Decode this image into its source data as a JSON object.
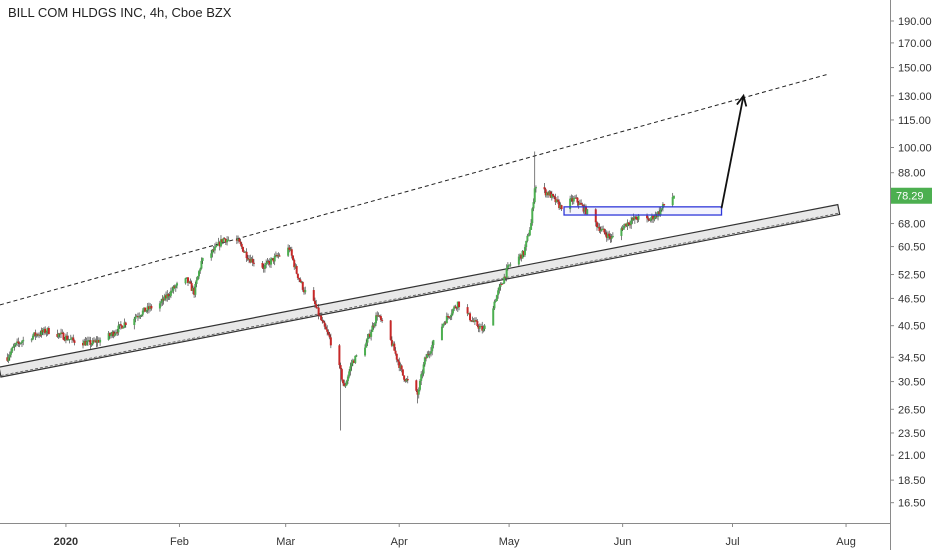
{
  "chart_data": {
    "type": "candlestick",
    "title": "BILL COM HLDGS INC, 4h, Cboe BZX",
    "y_scale": "log",
    "ylim": [
      15.5,
      205
    ],
    "xlim": [
      "2019-12-14",
      "2020-08-13"
    ],
    "y_ticks": [
      "190.00",
      "170.00",
      "150.00",
      "130.00",
      "115.00",
      "100.00",
      "88.00",
      "78.00",
      "68.00",
      "60.50",
      "52.50",
      "46.50",
      "40.50",
      "34.50",
      "30.50",
      "26.50",
      "23.50",
      "21.00",
      "18.50",
      "16.50"
    ],
    "x_ticks": [
      {
        "date": "2020-01-01",
        "label": "2020",
        "bold": true
      },
      {
        "date": "2020-02-01",
        "label": "Feb",
        "bold": false
      },
      {
        "date": "2020-03-01",
        "label": "Mar",
        "bold": false
      },
      {
        "date": "2020-04-01",
        "label": "Apr",
        "bold": false
      },
      {
        "date": "2020-05-01",
        "label": "May",
        "bold": false
      },
      {
        "date": "2020-06-01",
        "label": "Jun",
        "bold": false
      },
      {
        "date": "2020-07-01",
        "label": "Jul",
        "bold": false
      },
      {
        "date": "2020-08-01",
        "label": "Aug",
        "bold": false
      }
    ],
    "last_price": {
      "label": "78.29",
      "value": 78.29,
      "color": "#4caf50"
    },
    "colors": {
      "up": "#4caf50",
      "down": "#c62828",
      "wick": "#444444",
      "box": "#2f38d9",
      "line": "#333333"
    },
    "price_path": [
      [
        "2019-12-16",
        34.5
      ],
      [
        "2019-12-18",
        36.5
      ],
      [
        "2019-12-20",
        37.5
      ],
      [
        "2019-12-23",
        38.5
      ],
      [
        "2019-12-27",
        39.5
      ],
      [
        "2019-12-31",
        38.5
      ],
      [
        "2020-01-03",
        37.5
      ],
      [
        "2020-01-08",
        37.0
      ],
      [
        "2020-01-13",
        38.5
      ],
      [
        "2020-01-17",
        41.0
      ],
      [
        "2020-01-22",
        43.5
      ],
      [
        "2020-01-27",
        45.5
      ],
      [
        "2020-01-31",
        49.5
      ],
      [
        "2020-02-03",
        51.0
      ],
      [
        "2020-02-05",
        48.0
      ],
      [
        "2020-02-07",
        56.0
      ],
      [
        "2020-02-11",
        60.0
      ],
      [
        "2020-02-13",
        63.0
      ],
      [
        "2020-02-17",
        62.0
      ],
      [
        "2020-02-20",
        57.0
      ],
      [
        "2020-02-24",
        54.5
      ],
      [
        "2020-02-27",
        57.0
      ],
      [
        "2020-03-02",
        60.0
      ],
      [
        "2020-03-04",
        53.0
      ],
      [
        "2020-03-06",
        48.5
      ],
      [
        "2020-03-09",
        45.0
      ],
      [
        "2020-03-11",
        41.0
      ],
      [
        "2020-03-13",
        38.0
      ],
      [
        "2020-03-16",
        32.0
      ],
      [
        "2020-03-17",
        29.5
      ],
      [
        "2020-03-19",
        33.5
      ],
      [
        "2020-03-23",
        37.0
      ],
      [
        "2020-03-26",
        43.0
      ],
      [
        "2020-03-30",
        37.0
      ],
      [
        "2020-04-02",
        31.5
      ],
      [
        "2020-04-06",
        28.5
      ],
      [
        "2020-04-08",
        34.0
      ],
      [
        "2020-04-13",
        41.0
      ],
      [
        "2020-04-17",
        45.5
      ],
      [
        "2020-04-21",
        41.5
      ],
      [
        "2020-04-24",
        39.5
      ],
      [
        "2020-04-28",
        48.0
      ],
      [
        "2020-05-01",
        55.0
      ],
      [
        "2020-05-05",
        58.5
      ],
      [
        "2020-05-07",
        68.0
      ],
      [
        "2020-05-08",
        82.0
      ],
      [
        "2020-05-12",
        79.0
      ],
      [
        "2020-05-15",
        74.0
      ],
      [
        "2020-05-19",
        77.0
      ],
      [
        "2020-05-22",
        72.5
      ],
      [
        "2020-05-26",
        66.0
      ],
      [
        "2020-05-29",
        63.0
      ],
      [
        "2020-06-02",
        68.0
      ],
      [
        "2020-06-05",
        70.0
      ],
      [
        "2020-06-08",
        69.0
      ],
      [
        "2020-06-11",
        72.0
      ],
      [
        "2020-06-13",
        76.0
      ],
      [
        "2020-06-15",
        78.29
      ]
    ],
    "wick_extremes": [
      {
        "date": "2020-05-08",
        "high": 98.0
      },
      {
        "date": "2020-03-16",
        "low": 23.8
      },
      {
        "date": "2020-04-06",
        "low": 27.3
      }
    ],
    "drawings": {
      "upper_dashed_trendline": [
        [
          "2019-12-14",
          45.0
        ],
        [
          "2020-07-27",
          145.0
        ]
      ],
      "support_channel": [
        [
          "2019-12-14",
          32.0
        ],
        [
          "2020-07-30",
          73.0
        ]
      ],
      "resistance_box": {
        "x0": "2020-05-16",
        "x1": "2020-06-28",
        "y0": 71.0,
        "y1": 74.0
      },
      "projection_arrow": [
        [
          "2020-06-28",
          73.5
        ],
        [
          "2020-07-04",
          130.0
        ]
      ]
    }
  }
}
